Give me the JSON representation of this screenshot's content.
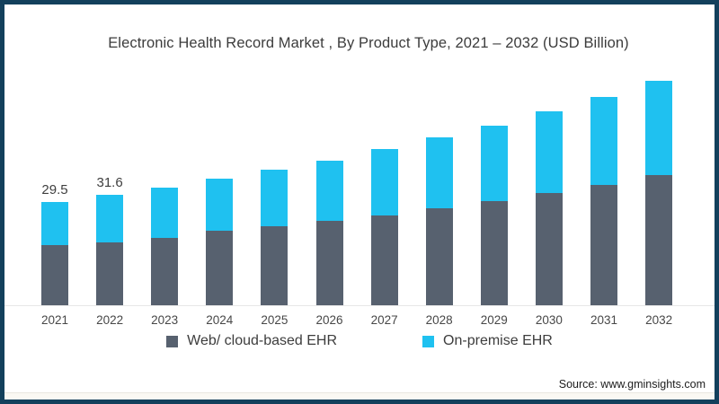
{
  "page": {
    "border_color": "#13405c",
    "background": "#ffffff"
  },
  "footer": {
    "source": "Source: www.gminsights.com"
  },
  "chart_data": {
    "type": "bar",
    "stacked": true,
    "title": "Electronic Health Record Market , By Product Type, 2021 – 2032 (USD Billion)",
    "unit": "USD Billion",
    "categories": [
      "2021",
      "2022",
      "2023",
      "2024",
      "2025",
      "2026",
      "2027",
      "2028",
      "2029",
      "2030",
      "2031",
      "2032"
    ],
    "series": [
      {
        "name": "Web/ cloud-based EHR",
        "color": "#57616f",
        "values": [
          17.2,
          18.0,
          19.3,
          21.3,
          22.6,
          24.1,
          25.7,
          27.7,
          29.8,
          32.1,
          34.4,
          37.2
        ]
      },
      {
        "name": "On-premise EHR",
        "color": "#1fc1f0",
        "values": [
          12.3,
          13.6,
          14.4,
          14.9,
          16.2,
          17.2,
          19.0,
          20.3,
          21.6,
          23.4,
          25.2,
          27.0
        ]
      }
    ],
    "totals": [
      29.5,
      31.6,
      33.7,
      36.2,
      38.8,
      41.3,
      44.7,
      48.0,
      51.4,
      55.5,
      59.6,
      64.2
    ],
    "total_labels": [
      "29.5",
      "31.6",
      "",
      "",
      "",
      "",
      "",
      "",
      "",
      "",
      "",
      ""
    ],
    "ylim": [
      0,
      70
    ],
    "grid": "baseline-only",
    "legend_position": "bottom",
    "y_axis_visible": false
  }
}
